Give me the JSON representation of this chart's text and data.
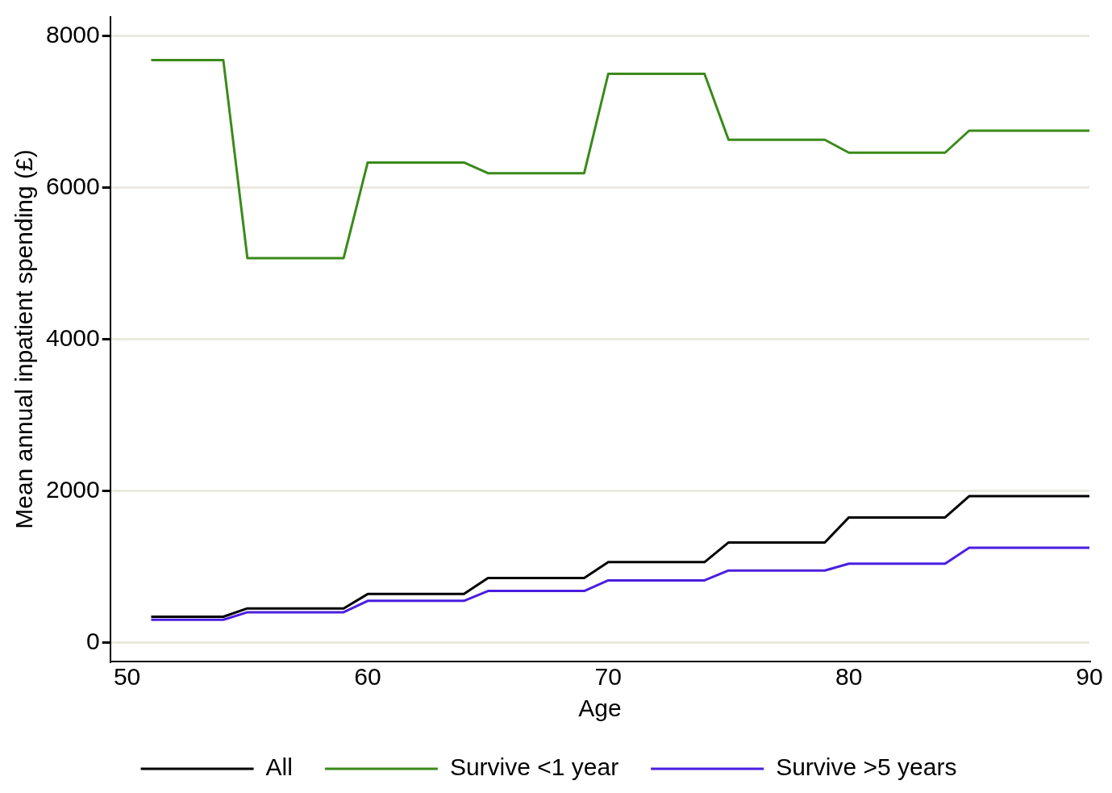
{
  "chart_data": {
    "type": "line",
    "xlabel": "Age",
    "ylabel": "Mean annual inpatient spending (£)",
    "xlim": [
      49.3,
      90
    ],
    "xticks": [
      50,
      60,
      70,
      80,
      90
    ],
    "ylim": [
      -250,
      8250
    ],
    "yticks": [
      0,
      2000,
      4000,
      6000,
      8000
    ],
    "grid": "y",
    "legend": "bottom",
    "marker": "none",
    "line_style": "solid",
    "x": [
      51,
      54,
      55,
      59,
      60,
      64,
      65,
      69,
      70,
      74,
      75,
      79,
      80,
      84,
      85,
      90
    ],
    "series": [
      {
        "name": "All",
        "color": "#000000",
        "values": [
          340,
          340,
          450,
          450,
          640,
          640,
          850,
          850,
          1060,
          1060,
          1320,
          1320,
          1650,
          1650,
          1930,
          1930
        ]
      },
      {
        "name": "Survive <1 year",
        "color": "#3a8a1a",
        "values": [
          7680,
          7680,
          5070,
          5070,
          6330,
          6330,
          6190,
          6190,
          7500,
          7500,
          6630,
          6630,
          6460,
          6460,
          6750,
          6750
        ]
      },
      {
        "name": "Survive >5 years",
        "color": "#4b1ee0",
        "values": [
          300,
          300,
          400,
          400,
          550,
          550,
          680,
          680,
          820,
          820,
          950,
          950,
          1040,
          1040,
          1250,
          1250
        ]
      }
    ]
  }
}
